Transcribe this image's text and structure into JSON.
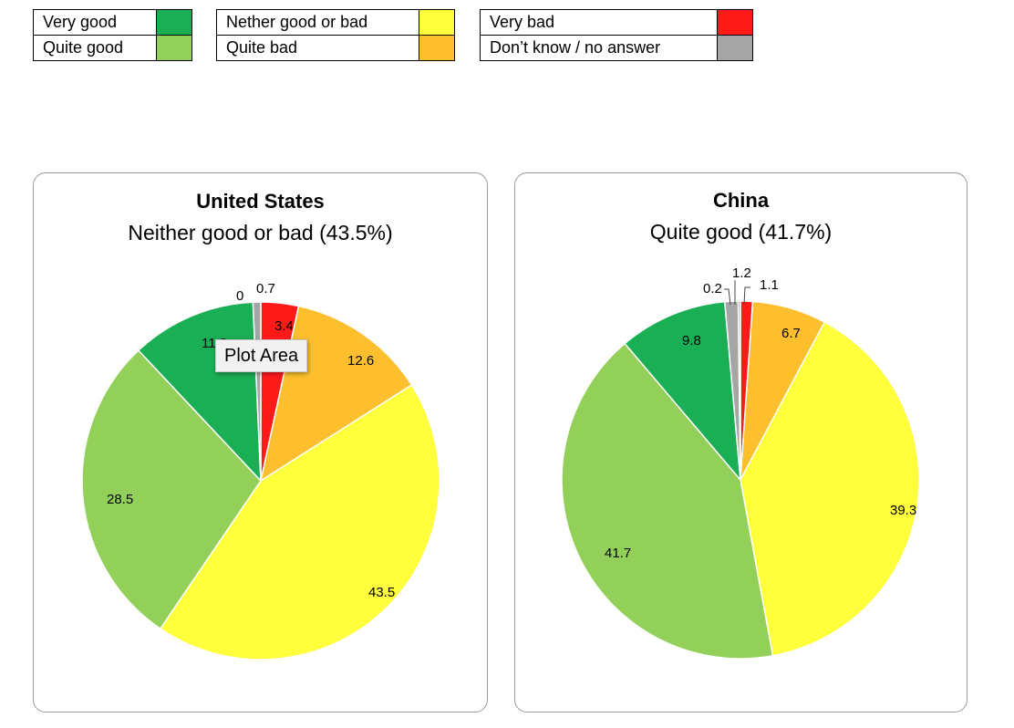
{
  "legend": [
    [
      {
        "label": "Very good",
        "color": "#1aaf54"
      },
      {
        "label": "Quite good",
        "color": "#92d05a"
      }
    ],
    [
      {
        "label": "Nether good or bad",
        "color": "#ffff3b"
      },
      {
        "label": "Quite bad",
        "color": "#fdbf2e"
      }
    ],
    [
      {
        "label": "Very bad",
        "color": "#ff1a1a"
      },
      {
        "label": "Don’t know / no answer",
        "color": "#a5a5a5"
      }
    ]
  ],
  "tooltip": {
    "text": "Plot Area"
  },
  "chart_data": [
    {
      "type": "pie",
      "title": "United States",
      "subtitle": "Neither good or bad (43.5%)",
      "categories": [
        "Very bad",
        "Quite bad",
        "Nether good or bad",
        "Quite good",
        "Very good",
        "Don’t know / no answer",
        "No answer"
      ],
      "values": [
        3.4,
        12.6,
        43.5,
        28.5,
        11.3,
        0.7,
        0
      ],
      "value_labels": [
        "3.4",
        "12.6",
        "43.5",
        "28.5",
        "11.3",
        "0.7",
        "0"
      ],
      "colors": [
        "#ff1a1a",
        "#fdbf2e",
        "#ffff3b",
        "#92d05a",
        "#1aaf54",
        "#a5a5a5",
        "#a5a5a5"
      ]
    },
    {
      "type": "pie",
      "title": "China",
      "subtitle": "Quite good (41.7%)",
      "categories": [
        "Very bad",
        "Quite bad",
        "Nether good or bad",
        "Quite good",
        "Very good",
        "Don’t know / no answer",
        "No answer"
      ],
      "values": [
        1.1,
        6.7,
        39.3,
        41.7,
        9.8,
        1.2,
        0.2
      ],
      "value_labels": [
        "1.1",
        "6.7",
        "39.3",
        "41.7",
        "9.8",
        "1.2",
        "0.2"
      ],
      "colors": [
        "#ff1a1a",
        "#fdbf2e",
        "#ffff3b",
        "#92d05a",
        "#1aaf54",
        "#a5a5a5",
        "#a5a5a5"
      ]
    }
  ]
}
